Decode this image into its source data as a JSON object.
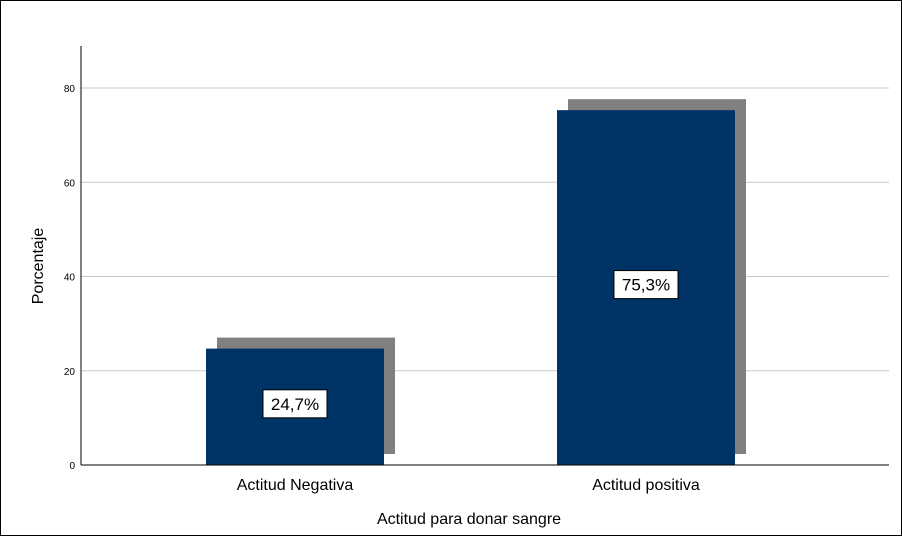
{
  "chart_data": {
    "type": "bar",
    "categories": [
      "Actitud Negativa",
      "Actitud positiva"
    ],
    "values": [
      24.7,
      75.3
    ],
    "data_labels": [
      "24,7%",
      "75,3%"
    ],
    "xlabel": "Actitud para donar sangre",
    "ylabel": "Porcentaje",
    "ylim": [
      0,
      80
    ],
    "yticks": [
      "0",
      "20",
      "40",
      "60",
      "80"
    ],
    "grid": true,
    "bar_color": "#003366",
    "shadow_color": "#808080",
    "gridline_color": "#c8c8c8"
  }
}
